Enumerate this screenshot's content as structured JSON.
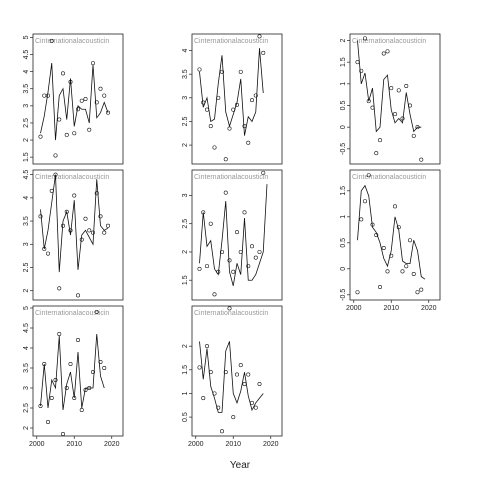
{
  "xlabel": "Year",
  "chart_data": [
    {
      "type": "scatter",
      "label": "Cinternationalacousticin",
      "x": [
        2001,
        2002,
        2003,
        2004,
        2005,
        2006,
        2007,
        2008,
        2009,
        2010,
        2011,
        2012,
        2013,
        2014,
        2015,
        2016,
        2017,
        2018,
        2019
      ],
      "xlim": [
        1999,
        2023
      ],
      "values": [
        2.1,
        3.3,
        3.3,
        4.9,
        1.55,
        2.6,
        3.95,
        2.15,
        3.7,
        2.2,
        2.9,
        3.15,
        3.2,
        2.3,
        4.25,
        3.1,
        3.5,
        3.3,
        2.8
      ],
      "fit": [
        2.2,
        2.7,
        3.4,
        4.25,
        2.0,
        3.3,
        3.5,
        2.6,
        3.8,
        2.4,
        3.0,
        2.9,
        2.9,
        2.5,
        4.2,
        2.65,
        2.8,
        3.1,
        2.8
      ],
      "ylim": [
        1.3,
        5.1
      ],
      "yticks": [
        1.5,
        2.0,
        2.5,
        3.0,
        3.5,
        4.0,
        4.5,
        5.0
      ]
    },
    {
      "type": "scatter",
      "label": "Cinternationalacousticin",
      "x": [
        2001,
        2002,
        2003,
        2004,
        2005,
        2006,
        2007,
        2008,
        2009,
        2010,
        2011,
        2012,
        2013,
        2014,
        2015,
        2016,
        2017,
        2018,
        2019
      ],
      "xlim": [
        1999,
        2023
      ],
      "values": [
        3.6,
        2.9,
        2.75,
        2.4,
        1.95,
        3.0,
        3.55,
        1.7,
        2.35,
        2.75,
        2.85,
        3.55,
        2.4,
        2.05,
        2.95,
        3.05,
        4.3,
        3.95,
        null
      ],
      "fit": [
        3.55,
        2.8,
        3.0,
        2.5,
        2.55,
        3.3,
        3.9,
        2.7,
        2.4,
        2.65,
        2.9,
        3.4,
        2.2,
        2.6,
        2.5,
        2.7,
        4.05,
        3.1,
        null
      ],
      "ylim": [
        1.6,
        4.35
      ],
      "yticks": [
        2.0,
        2.5,
        3.0,
        3.5,
        4.0
      ]
    },
    {
      "type": "scatter",
      "label": "Cinternationalacousticin",
      "x": [
        2001,
        2002,
        2003,
        2004,
        2005,
        2006,
        2007,
        2008,
        2009,
        2010,
        2011,
        2012,
        2013,
        2014,
        2015,
        2016,
        2017,
        2018,
        2019
      ],
      "xlim": [
        1999,
        2023
      ],
      "values": [
        1.5,
        1.3,
        2.05,
        0.6,
        0.45,
        -0.6,
        -0.3,
        1.7,
        1.75,
        0.9,
        0.3,
        0.85,
        0.2,
        0.95,
        0.5,
        -0.2,
        0.0,
        -0.75,
        null
      ],
      "fit": [
        2.0,
        1.0,
        1.25,
        0.6,
        0.9,
        -0.1,
        0.0,
        1.1,
        1.2,
        0.4,
        0.1,
        0.2,
        0.1,
        0.8,
        0.3,
        -0.1,
        0.0,
        0.0,
        null
      ],
      "ylim": [
        -0.85,
        2.15
      ],
      "yticks": [
        -0.5,
        0.0,
        0.5,
        1.0,
        1.5,
        2.0
      ]
    },
    {
      "type": "scatter",
      "label": "Cinternationalacousticin",
      "x": [
        2001,
        2002,
        2003,
        2004,
        2005,
        2006,
        2007,
        2008,
        2009,
        2010,
        2011,
        2012,
        2013,
        2014,
        2015,
        2016,
        2017,
        2018,
        2019
      ],
      "xlim": [
        1999,
        2023
      ],
      "values": [
        3.6,
        2.9,
        2.8,
        4.15,
        4.5,
        2.05,
        3.4,
        3.7,
        3.3,
        4.05,
        1.9,
        3.1,
        3.55,
        3.3,
        3.25,
        4.1,
        3.6,
        3.25,
        3.4
      ],
      "fit": [
        3.75,
        2.9,
        3.3,
        3.9,
        4.5,
        2.4,
        3.5,
        3.7,
        3.2,
        3.95,
        2.45,
        3.2,
        3.3,
        3.15,
        3.0,
        4.4,
        3.4,
        3.3,
        3.35
      ],
      "ylim": [
        1.8,
        4.6
      ],
      "yticks": [
        2.0,
        2.5,
        3.0,
        3.5,
        4.0,
        4.5
      ]
    },
    {
      "type": "scatter",
      "label": "Cinternationalacousticin",
      "x": [
        2001,
        2002,
        2003,
        2004,
        2005,
        2006,
        2007,
        2008,
        2009,
        2010,
        2011,
        2012,
        2013,
        2014,
        2015,
        2016,
        2017,
        2018,
        2019
      ],
      "xlim": [
        1999,
        2023
      ],
      "values": [
        1.7,
        2.7,
        1.75,
        2.5,
        1.25,
        1.65,
        2.0,
        3.05,
        1.85,
        1.65,
        2.35,
        2.0,
        2.7,
        1.75,
        2.1,
        1.9,
        2.0,
        3.4,
        null
      ],
      "fit": [
        1.8,
        2.7,
        2.1,
        2.2,
        1.7,
        1.6,
        2.2,
        2.9,
        1.65,
        1.4,
        1.8,
        1.6,
        2.6,
        1.5,
        1.5,
        1.6,
        1.8,
        2.0,
        3.2
      ],
      "ylim": [
        1.15,
        3.45
      ],
      "yticks": [
        1.5,
        2.0,
        2.5,
        3.0
      ]
    },
    {
      "type": "scatter",
      "label": "Cinternationalacousticin",
      "x": [
        2001,
        2002,
        2003,
        2004,
        2005,
        2006,
        2007,
        2008,
        2009,
        2010,
        2011,
        2012,
        2013,
        2014,
        2015,
        2016,
        2017,
        2018,
        2019
      ],
      "xlim": [
        1999,
        2023
      ],
      "values": [
        -0.45,
        0.95,
        1.3,
        1.8,
        0.85,
        0.65,
        -0.35,
        0.4,
        -0.05,
        0.25,
        1.2,
        0.8,
        -0.05,
        0.05,
        0.55,
        -0.1,
        -0.45,
        -0.4,
        null
      ],
      "fit": [
        0.55,
        1.5,
        1.6,
        1.4,
        0.8,
        0.7,
        0.5,
        0.2,
        0.05,
        0.35,
        1.0,
        0.75,
        0.15,
        0.1,
        0.1,
        0.55,
        0.35,
        -0.15,
        -0.2
      ],
      "ylim": [
        -0.6,
        1.9
      ],
      "yticks": [
        -0.5,
        0.0,
        0.5,
        1.0,
        1.5
      ],
      "xticks": [
        2000,
        2010,
        2020
      ]
    },
    {
      "type": "scatter",
      "label": "Cinternationalacousticin",
      "x": [
        2001,
        2002,
        2003,
        2004,
        2005,
        2006,
        2007,
        2008,
        2009,
        2010,
        2011,
        2012,
        2013,
        2014,
        2015,
        2016,
        2017,
        2018,
        2019
      ],
      "xlim": [
        1999,
        2023
      ],
      "values": [
        2.55,
        3.6,
        2.15,
        2.75,
        3.2,
        4.35,
        1.85,
        3.0,
        3.6,
        2.75,
        4.2,
        2.45,
        2.95,
        3.0,
        3.4,
        4.9,
        3.65,
        3.5,
        null
      ],
      "fit": [
        2.55,
        3.6,
        2.5,
        3.2,
        3.0,
        4.3,
        2.45,
        3.1,
        3.4,
        2.75,
        3.9,
        2.5,
        3.0,
        3.0,
        3.0,
        4.35,
        3.3,
        3.0,
        null
      ],
      "ylim": [
        1.8,
        5.05
      ],
      "yticks": [
        2.0,
        2.5,
        3.0,
        3.5,
        4.0,
        4.5,
        5.0
      ],
      "xticks": [
        2000,
        2010,
        2020
      ]
    },
    {
      "type": "scatter",
      "label": "Cinternationalacousticin",
      "x": [
        2001,
        2002,
        2003,
        2004,
        2005,
        2006,
        2007,
        2008,
        2009,
        2010,
        2011,
        2012,
        2013,
        2014,
        2015,
        2016,
        2017,
        2018,
        2019
      ],
      "xlim": [
        1999,
        2023
      ],
      "values": [
        1.55,
        0.9,
        2.0,
        1.45,
        1.0,
        0.7,
        0.2,
        1.45,
        2.8,
        0.5,
        1.4,
        1.6,
        1.2,
        1.4,
        0.8,
        0.7,
        1.2,
        null,
        null
      ],
      "fit": [
        2.1,
        1.3,
        1.95,
        1.15,
        0.9,
        0.6,
        0.6,
        1.9,
        2.1,
        1.0,
        0.8,
        1.05,
        1.45,
        0.95,
        0.65,
        0.8,
        0.9,
        1.0,
        null
      ],
      "ylim": [
        0.1,
        2.85
      ],
      "yticks": [
        0.5,
        1.0,
        1.5,
        2.0
      ],
      "xticks": [
        2000,
        2010,
        2020
      ]
    }
  ]
}
